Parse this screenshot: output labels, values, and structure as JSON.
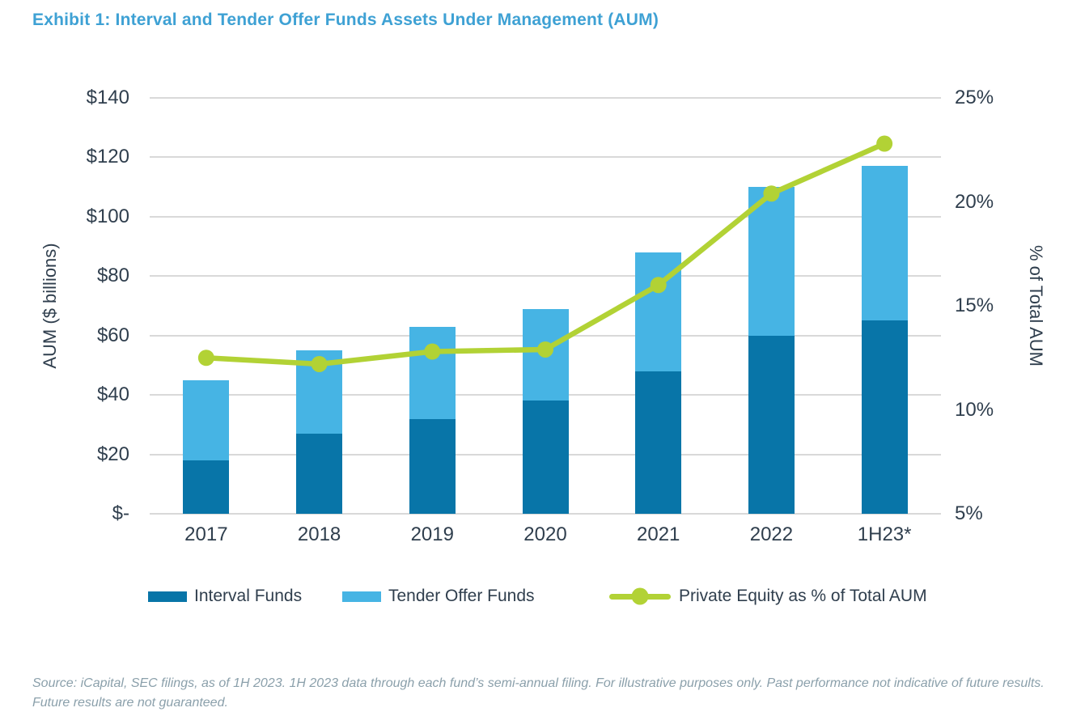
{
  "title": "Exhibit 1: Interval and Tender Offer Funds Assets Under Management (AUM)",
  "chart_data": {
    "type": "bar",
    "subtype": "stacked-bars-with-line-overlay",
    "categories": [
      "2017",
      "2018",
      "2019",
      "2020",
      "2021",
      "2022",
      "1H23*"
    ],
    "series": [
      {
        "name": "Interval Funds",
        "type": "bar",
        "stacked": true,
        "color": "#0875a8",
        "values": [
          18,
          27,
          32,
          38,
          48,
          60,
          65
        ]
      },
      {
        "name": "Tender Offer Funds",
        "type": "bar",
        "stacked": true,
        "color": "#46b4e4",
        "values": [
          27,
          28,
          31,
          31,
          40,
          50,
          52
        ]
      },
      {
        "name": "Private Equity as % of Total AUM",
        "type": "line",
        "axis": "right",
        "color": "#b2d235",
        "values": [
          12.5,
          12.2,
          12.8,
          12.9,
          16.0,
          20.4,
          22.8
        ]
      }
    ],
    "stacked_totals": [
      45,
      55,
      63,
      69,
      88,
      110,
      117
    ],
    "left_axis": {
      "title": "AUM ($ billions)",
      "min": 0,
      "max": 140,
      "step": 20,
      "ticks": [
        "$140",
        "$120",
        "$100",
        "$80",
        "$60",
        "$40",
        "$20",
        "$-"
      ]
    },
    "right_axis": {
      "title": "% of Total AUM",
      "min": 5,
      "max": 25,
      "step": 5,
      "ticks": [
        "25%",
        "20%",
        "15%",
        "10%",
        "5%"
      ]
    },
    "grid": true,
    "legend_position": "bottom"
  },
  "colors": {
    "title": "#3ea1d4",
    "interval_funds": "#0875a8",
    "tender_offer_funds": "#46b4e4",
    "pe_line": "#b2d235",
    "axis_text": "#2f3e4d",
    "gridline": "#d9d9d9",
    "footer_text": "#8ba0ab"
  },
  "footer": {
    "line1": "Source: iCapital, SEC filings, as of 1H 2023. 1H 2023 data through each fund’s semi-annual filing. For illustrative purposes only. Past performance not indicative of future results.",
    "line2": "Future results are not guaranteed."
  }
}
